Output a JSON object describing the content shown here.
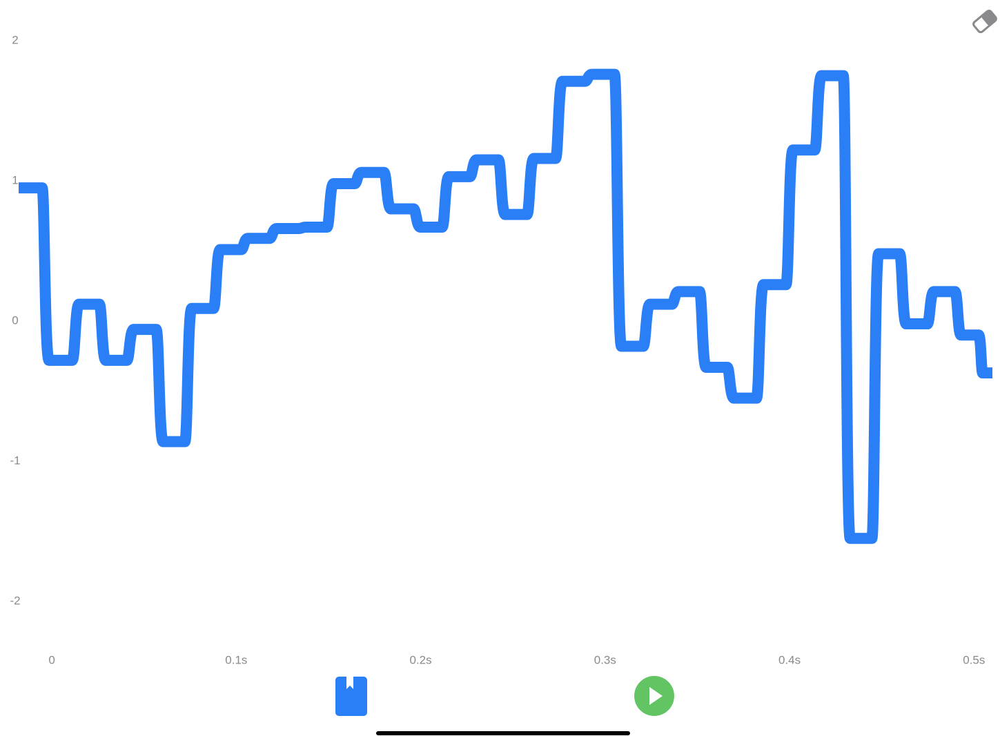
{
  "chart_data": {
    "type": "line",
    "x": [
      -0.012,
      0.005,
      0.021,
      0.034,
      0.051,
      0.066,
      0.082,
      0.097,
      0.112,
      0.128,
      0.144,
      0.158,
      0.174,
      0.19,
      0.206,
      0.221,
      0.236,
      0.252,
      0.267,
      0.283,
      0.299,
      0.315,
      0.33,
      0.346,
      0.36,
      0.376,
      0.392,
      0.408,
      0.423,
      0.439,
      0.454,
      0.469,
      0.484,
      0.499,
      0.509
    ],
    "series": [
      {
        "color": "#2a7ff6",
        "values": [
          0.95,
          -0.28,
          0.12,
          -0.28,
          -0.06,
          -0.86,
          0.09,
          0.51,
          0.59,
          0.66,
          0.67,
          0.98,
          1.06,
          0.8,
          0.67,
          1.03,
          1.15,
          0.76,
          1.16,
          1.71,
          1.76,
          -0.18,
          0.12,
          0.21,
          -0.33,
          -0.55,
          0.26,
          1.22,
          1.75,
          -1.55,
          0.48,
          -0.02,
          0.21,
          -0.1,
          -0.37
        ]
      }
    ],
    "xlim": [
      -0.018,
      0.51
    ],
    "ylim": [
      -2.29,
      2.29
    ],
    "xticks": [
      0,
      {
        "value": 0.1,
        "label": "0.1s"
      },
      {
        "value": 0.2,
        "label": "0.2s"
      },
      {
        "value": 0.3,
        "label": "0.3s"
      },
      {
        "value": 0.4,
        "label": "0.4s"
      },
      {
        "value": 0.5,
        "label": "0.5s"
      }
    ],
    "yticks": [
      2,
      1,
      0,
      -1,
      -2
    ],
    "step": true
  }
}
